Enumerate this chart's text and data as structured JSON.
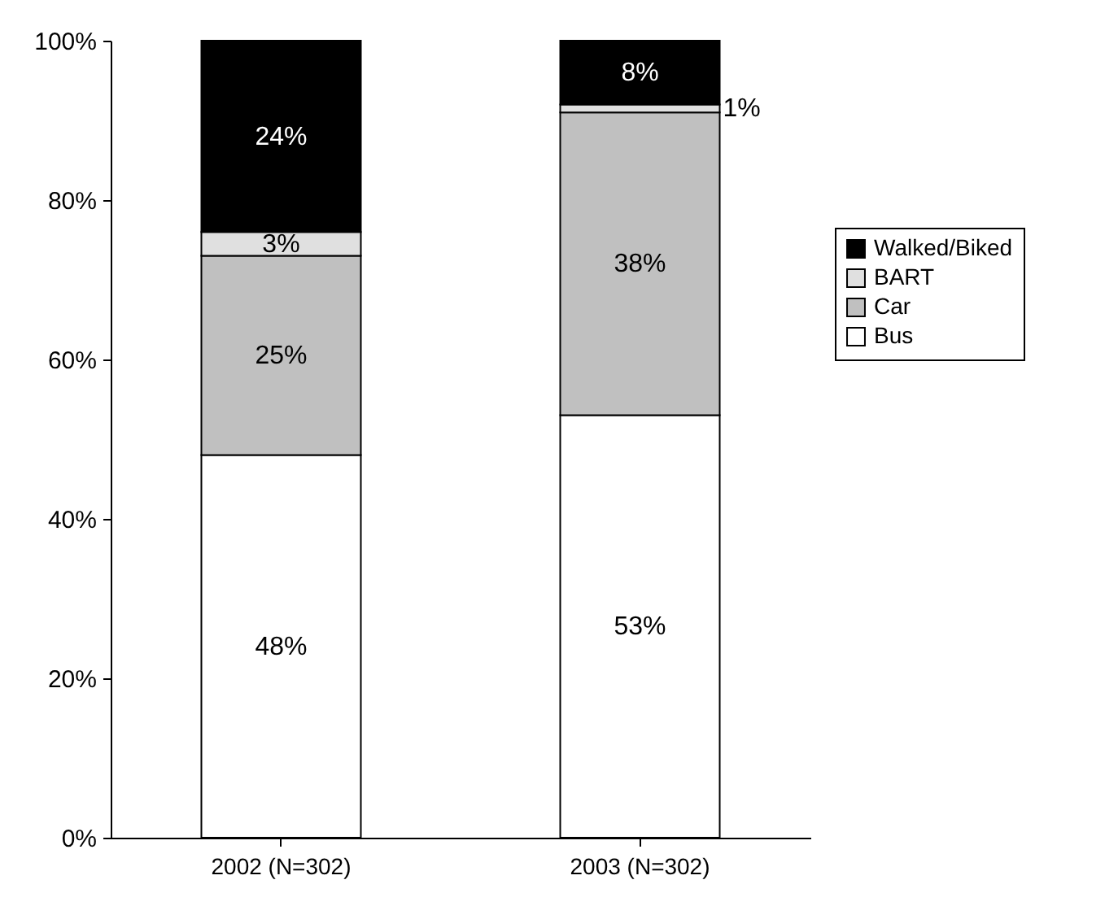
{
  "chart_data": {
    "type": "bar",
    "stacked": true,
    "categories": [
      "2002 (N=302)",
      "2003 (N=302)"
    ],
    "series": [
      {
        "name": "Bus",
        "color": "#ffffff",
        "values": [
          48,
          53
        ],
        "value_labels": [
          "48%",
          "53%"
        ]
      },
      {
        "name": "Car",
        "color": "#c0c0c0",
        "values": [
          25,
          38
        ],
        "value_labels": [
          "25%",
          "38%"
        ]
      },
      {
        "name": "BART",
        "color": "#e0e0e0",
        "values": [
          3,
          1
        ],
        "value_labels": [
          "3%",
          "1%"
        ]
      },
      {
        "name": "Walked/Biked",
        "color": "#000000",
        "values": [
          24,
          8
        ],
        "value_labels": [
          "24%",
          "8%"
        ]
      }
    ],
    "ylim": [
      0,
      100
    ],
    "yticks": [
      {
        "value": 0,
        "label": "0%"
      },
      {
        "value": 20,
        "label": "20%"
      },
      {
        "value": 40,
        "label": "40%"
      },
      {
        "value": 60,
        "label": "60%"
      },
      {
        "value": 80,
        "label": "80%"
      },
      {
        "value": 100,
        "label": "100%"
      }
    ],
    "grid": false,
    "legend": "right"
  }
}
